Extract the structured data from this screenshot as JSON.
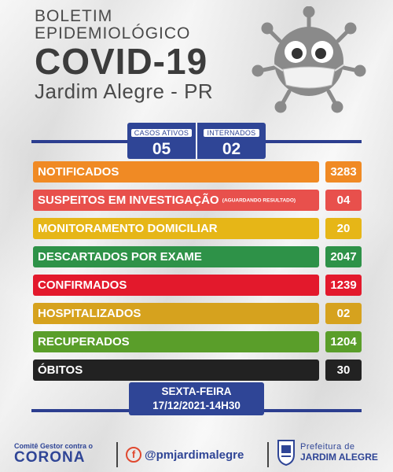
{
  "header": {
    "line1": "BOLETIM",
    "line2": "EPIDEMIOLÓGICO",
    "main": "COVID-19",
    "sub": "Jardim Alegre - PR"
  },
  "summary": {
    "active_label": "CASOS ATIVOS",
    "active_value": "05",
    "hosp_label": "INTERNADOS",
    "hosp_value": "02"
  },
  "rows": [
    {
      "label": "NOTIFICADOS",
      "note": "",
      "value": "3283",
      "color": "#f08a24"
    },
    {
      "label": "SUSPEITOS EM INVESTIGAÇÃO",
      "note": "(AGUARDANDO RESULTADO)",
      "value": "04",
      "color": "#e8504c"
    },
    {
      "label": "MONITORAMENTO DOMICILIAR",
      "note": "",
      "value": "20",
      "color": "#e6b617"
    },
    {
      "label": "DESCARTADOS POR EXAME",
      "note": "",
      "value": "2047",
      "color": "#2e9248"
    },
    {
      "label": "CONFIRMADOS",
      "note": "",
      "value": "1239",
      "color": "#e3192c"
    },
    {
      "label": "HOSPITALIZADOS",
      "note": "",
      "value": "02",
      "color": "#d6a21e"
    },
    {
      "label": "RECUPERADOS",
      "note": "",
      "value": "1204",
      "color": "#5a9e2a"
    },
    {
      "label": "ÓBITOS",
      "note": "",
      "value": "30",
      "color": "#222222"
    }
  ],
  "date": {
    "day": "SEXTA-FEIRA",
    "datetime": "17/12/2021-14H30"
  },
  "footer": {
    "comite_small": "Comitê Gestor contra o",
    "comite_big": "CORONA",
    "social_icon": "facebook-icon",
    "handle": "@pmjardimalegre",
    "pref_line1": "Prefeitura de",
    "pref_line2": "JARDIM ALEGRE"
  }
}
